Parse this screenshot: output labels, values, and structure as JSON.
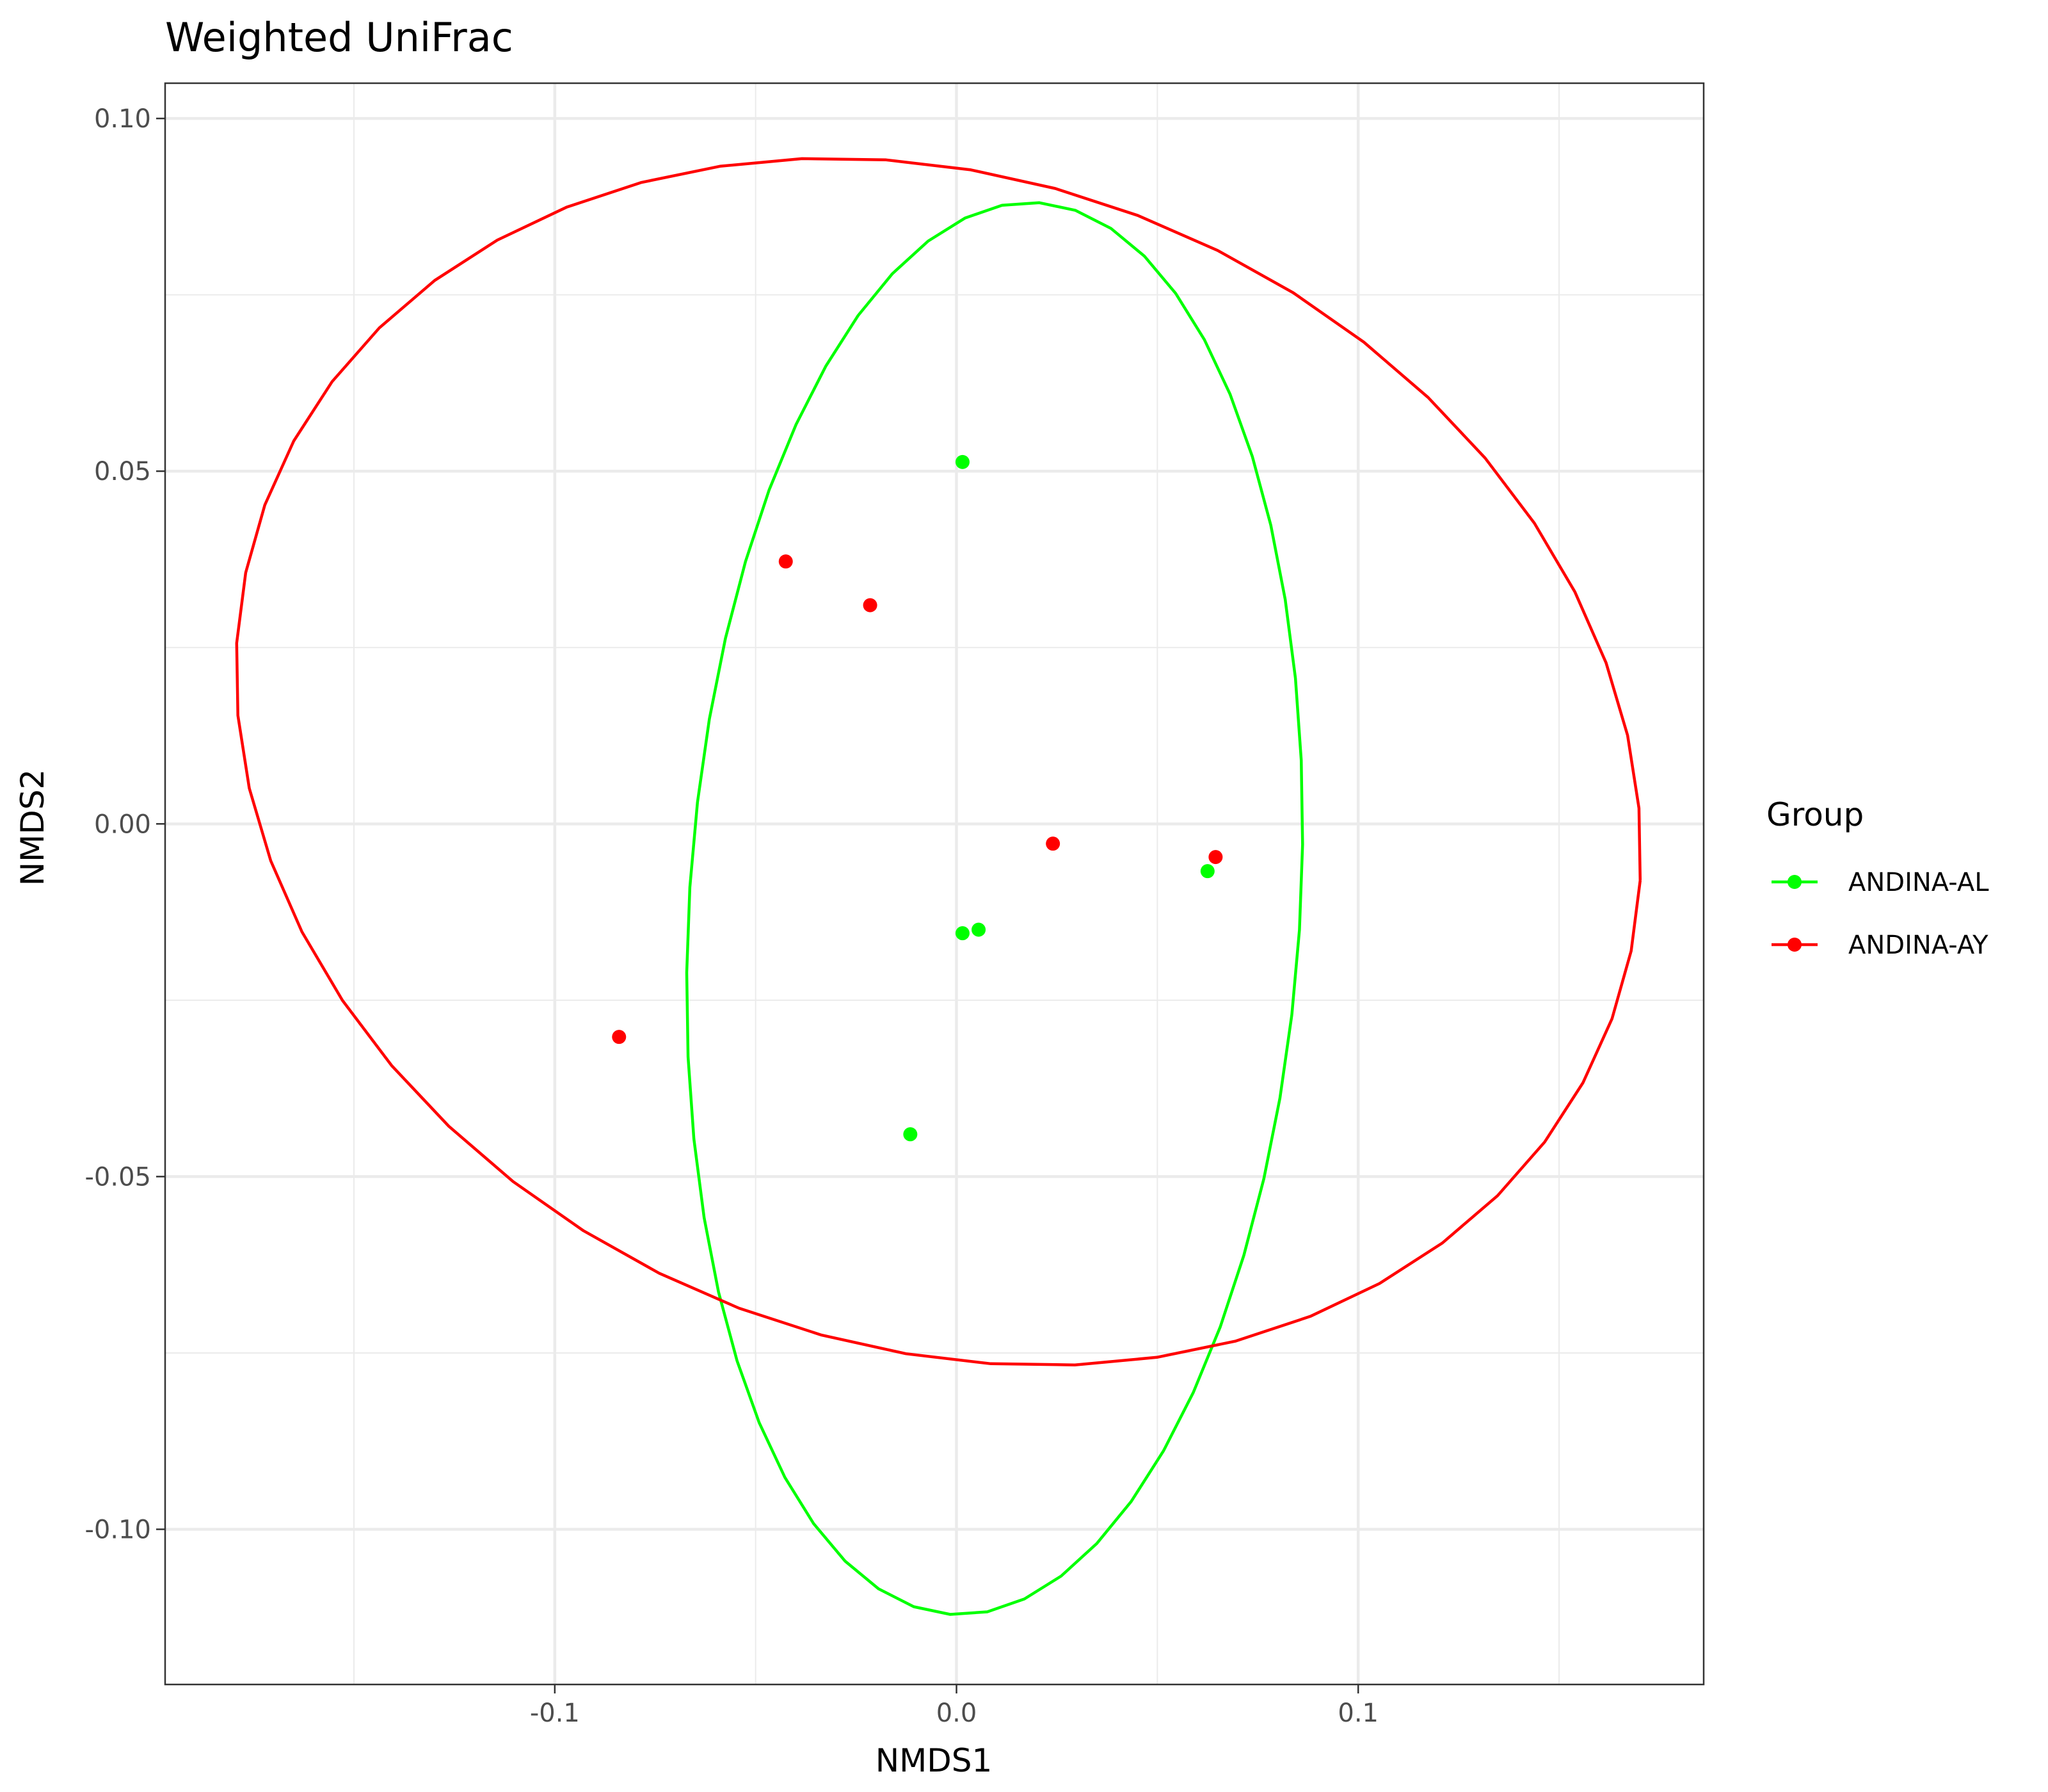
{
  "chart_data": {
    "type": "scatter",
    "title": "Weighted UniFrac",
    "xlabel": "NMDS1",
    "ylabel": "NMDS2",
    "xlim": [
      -0.197,
      0.186
    ],
    "ylim": [
      -0.122,
      0.105
    ],
    "x_ticks": [
      {
        "value": -0.1,
        "label": "-0.1"
      },
      {
        "value": 0.0,
        "label": "0.0"
      },
      {
        "value": 0.1,
        "label": "0.1"
      }
    ],
    "x_minor": [
      -0.15,
      -0.05,
      0.05,
      0.15
    ],
    "y_ticks": [
      {
        "value": 0.1,
        "label": "0.10"
      },
      {
        "value": 0.05,
        "label": "0.05"
      },
      {
        "value": 0.0,
        "label": "0.00"
      },
      {
        "value": -0.05,
        "label": "-0.05"
      },
      {
        "value": -0.1,
        "label": "-0.10"
      }
    ],
    "y_minor": [
      0.075,
      0.025,
      -0.025,
      -0.075
    ],
    "grid": true,
    "legend": {
      "title": "Group",
      "placement": "right"
    },
    "series": [
      {
        "name": "ANDINA-AL",
        "color": "#00ff00",
        "points": [
          {
            "x": 0.0015,
            "y": 0.0513
          },
          {
            "x": 0.0015,
            "y": -0.0155
          },
          {
            "x": 0.0055,
            "y": -0.015
          },
          {
            "x": 0.0625,
            "y": -0.0067
          },
          {
            "x": -0.0115,
            "y": -0.044
          }
        ],
        "ellipse": {
          "cx": 0.0095,
          "cy": -0.012,
          "rx": 0.0755,
          "ry": 0.101,
          "angle_deg": -11.5
        }
      },
      {
        "name": "ANDINA-AY",
        "color": "#ff0000",
        "points": [
          {
            "x": -0.0425,
            "y": 0.0372
          },
          {
            "x": -0.0215,
            "y": 0.031
          },
          {
            "x": 0.024,
            "y": -0.0028
          },
          {
            "x": 0.0645,
            "y": -0.0047
          },
          {
            "x": -0.084,
            "y": -0.0302
          }
        ],
        "ellipse": {
          "cx": -0.0045,
          "cy": 0.0088,
          "rx": 0.1755,
          "ry": 0.0843,
          "angle_deg": -5.5
        }
      }
    ]
  }
}
